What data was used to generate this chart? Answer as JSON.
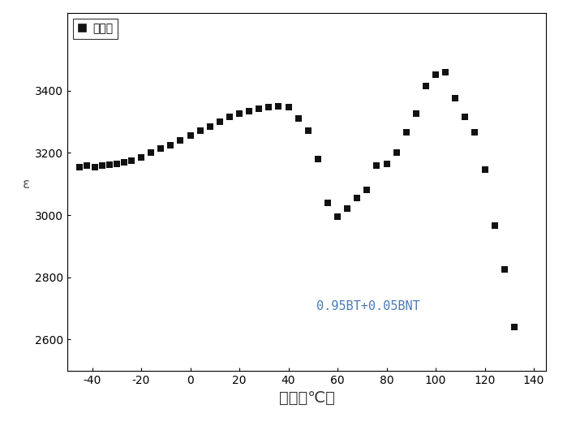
{
  "title": "",
  "xlabel_chinese": "温度（℃）",
  "xlabel_fallback": "温度(°C)",
  "ylabel": "ε",
  "legend_label": "样品一",
  "legend_fallback": "样品一",
  "annotation": "0.95BT+0.05BNT",
  "annotation_color": "#4a7ab5",
  "xlim": [
    -50,
    145
  ],
  "ylim": [
    2500,
    3650
  ],
  "xticks": [
    -40,
    -20,
    0,
    20,
    40,
    60,
    80,
    100,
    120,
    140
  ],
  "yticks": [
    2600,
    2800,
    3000,
    3200,
    3400
  ],
  "background_color": "#ffffff",
  "marker_color": "#111111",
  "x_data": [
    -45,
    -42,
    -39,
    -36,
    -33,
    -30,
    -27,
    -24,
    -20,
    -16,
    -12,
    -8,
    -4,
    0,
    4,
    8,
    12,
    16,
    20,
    24,
    28,
    32,
    36,
    40,
    44,
    48,
    52,
    56,
    60,
    64,
    68,
    72,
    76,
    80,
    84,
    88,
    92,
    96,
    100,
    104,
    108,
    112,
    116,
    120,
    124,
    128,
    132
  ],
  "y_data": [
    3155,
    3158,
    3155,
    3160,
    3162,
    3165,
    3170,
    3175,
    3185,
    3200,
    3215,
    3225,
    3240,
    3255,
    3270,
    3285,
    3300,
    3315,
    3325,
    3335,
    3342,
    3348,
    3350,
    3348,
    3310,
    3270,
    3180,
    3040,
    2995,
    3020,
    3055,
    3080,
    3160,
    3165,
    3200,
    3265,
    3325,
    3415,
    3450,
    3460,
    3375,
    3315,
    3265,
    3145,
    2965,
    2825,
    2640
  ],
  "figsize": [
    6.94,
    5.25
  ],
  "dpi": 100
}
